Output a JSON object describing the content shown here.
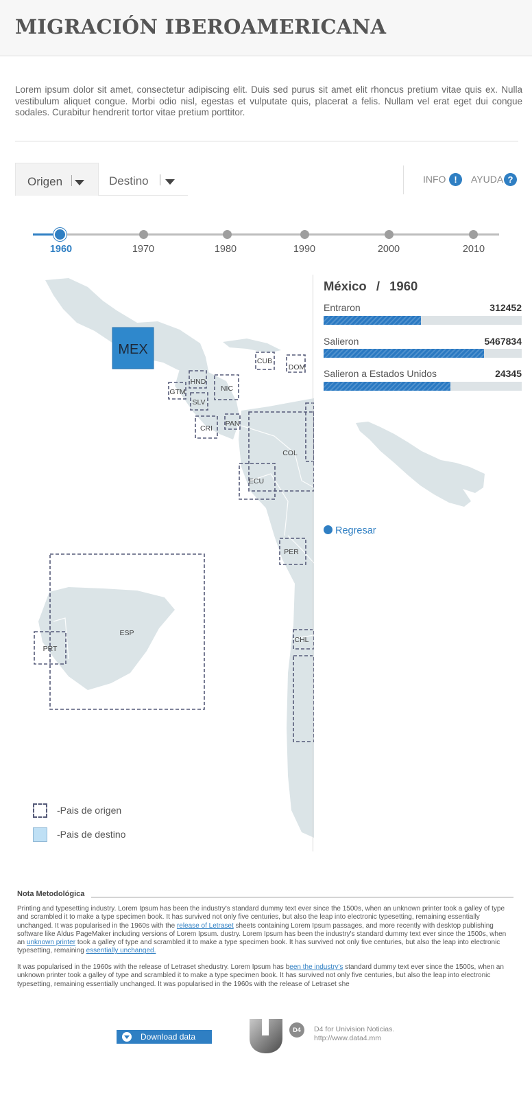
{
  "header": {
    "title": "MIGRACIÓN IBEROAMERICANA"
  },
  "intro": "Lorem ipsum dolor sit amet, consectetur adipiscing elit. Duis sed purus sit amet elit rhoncus pretium vitae quis ex. Nulla vestibulum aliquet congue. Morbi odio nisl, egestas et vulputate quis, placerat a felis. Nullam vel erat eget dui congue sodales. Curabitur hendrerit tortor vitae pretium porttitor.",
  "tabs": [
    {
      "label": "Origen",
      "active": true
    },
    {
      "label": "Destino",
      "active": false
    }
  ],
  "help": {
    "info": "INFO",
    "info_glyph": "!",
    "ayuda": "AYUDA",
    "ayuda_glyph": "?"
  },
  "timeline": {
    "years": [
      "1960",
      "1970",
      "1980",
      "1990",
      "2000",
      "2010"
    ],
    "selected": "1960"
  },
  "map": {
    "selected_country": "MEX",
    "countries": [
      "CUB",
      "DOM",
      "HND",
      "GTM",
      "NIC",
      "SLV",
      "CRI",
      "PAN",
      "COL",
      "ECU",
      "PER",
      "CHL",
      "ESP",
      "PRT"
    ]
  },
  "panel": {
    "country": "México",
    "separator": "/",
    "year": "1960",
    "stats": [
      {
        "label": "Entraron",
        "value": "312452",
        "fill": 0.49
      },
      {
        "label": "Salieron",
        "value": "5467834",
        "fill": 0.81
      },
      {
        "label": "Salieron  a Estados Unidos",
        "value": "24345",
        "fill": 0.64
      }
    ],
    "back": "Regresar"
  },
  "legend": {
    "origin": "-Pais de origen",
    "dest": "-Pais de destino"
  },
  "nota": {
    "heading": "Nota Metodológica",
    "p1_a": "Printing and typesetting industry. Lorem Ipsum has been the industry's standard dummy text ever since the 1500s, when an unknown printer took a galley of type and scrambled it to make a type specimen book. It has survived not only five centuries, but also the leap into electronic typesetting, remaining essentially unchanged. It was popularised in the 1960s with the ",
    "p1_link1": "release of Letraset",
    "p1_b": " sheets containing Lorem Ipsum passages, and more recently with desktop publishing software like Aldus PageMaker including versions of Lorem Ipsum. dustry. Lorem Ipsum has been the industry's standard dummy text ever since the 1500s, when an ",
    "p1_link2": "unknown printer",
    "p1_c": " took a galley of type and scrambled it to make a type specimen book. It has survived not only five centuries, but also the leap into electronic typesetting, remaining ",
    "p1_link3": "essentially unchanged.",
    "p2_a": "It was popularised in the 1960s with the release of Letraset shedustry. Lorem Ipsum has b",
    "p2_link": "een the industry's",
    "p2_b": " standard dummy text ever since the 1500s, when an unknown printer took a galley of type and scrambled it to make a type specimen book. It has survived not only five centuries, but also the leap into electronic typesetting, remaining essentially unchanged. It was popularised in the 1960s with the release of Letraset she"
  },
  "footer": {
    "download": "Download data",
    "d4_badge": "D4",
    "credit_line1": "D4 for Univision Noticias.",
    "credit_line2": "http://www.data4.mm"
  },
  "colors": {
    "accent": "#2f7fc3",
    "land": "#dbe4e7",
    "dashed_border": "#555a78"
  }
}
